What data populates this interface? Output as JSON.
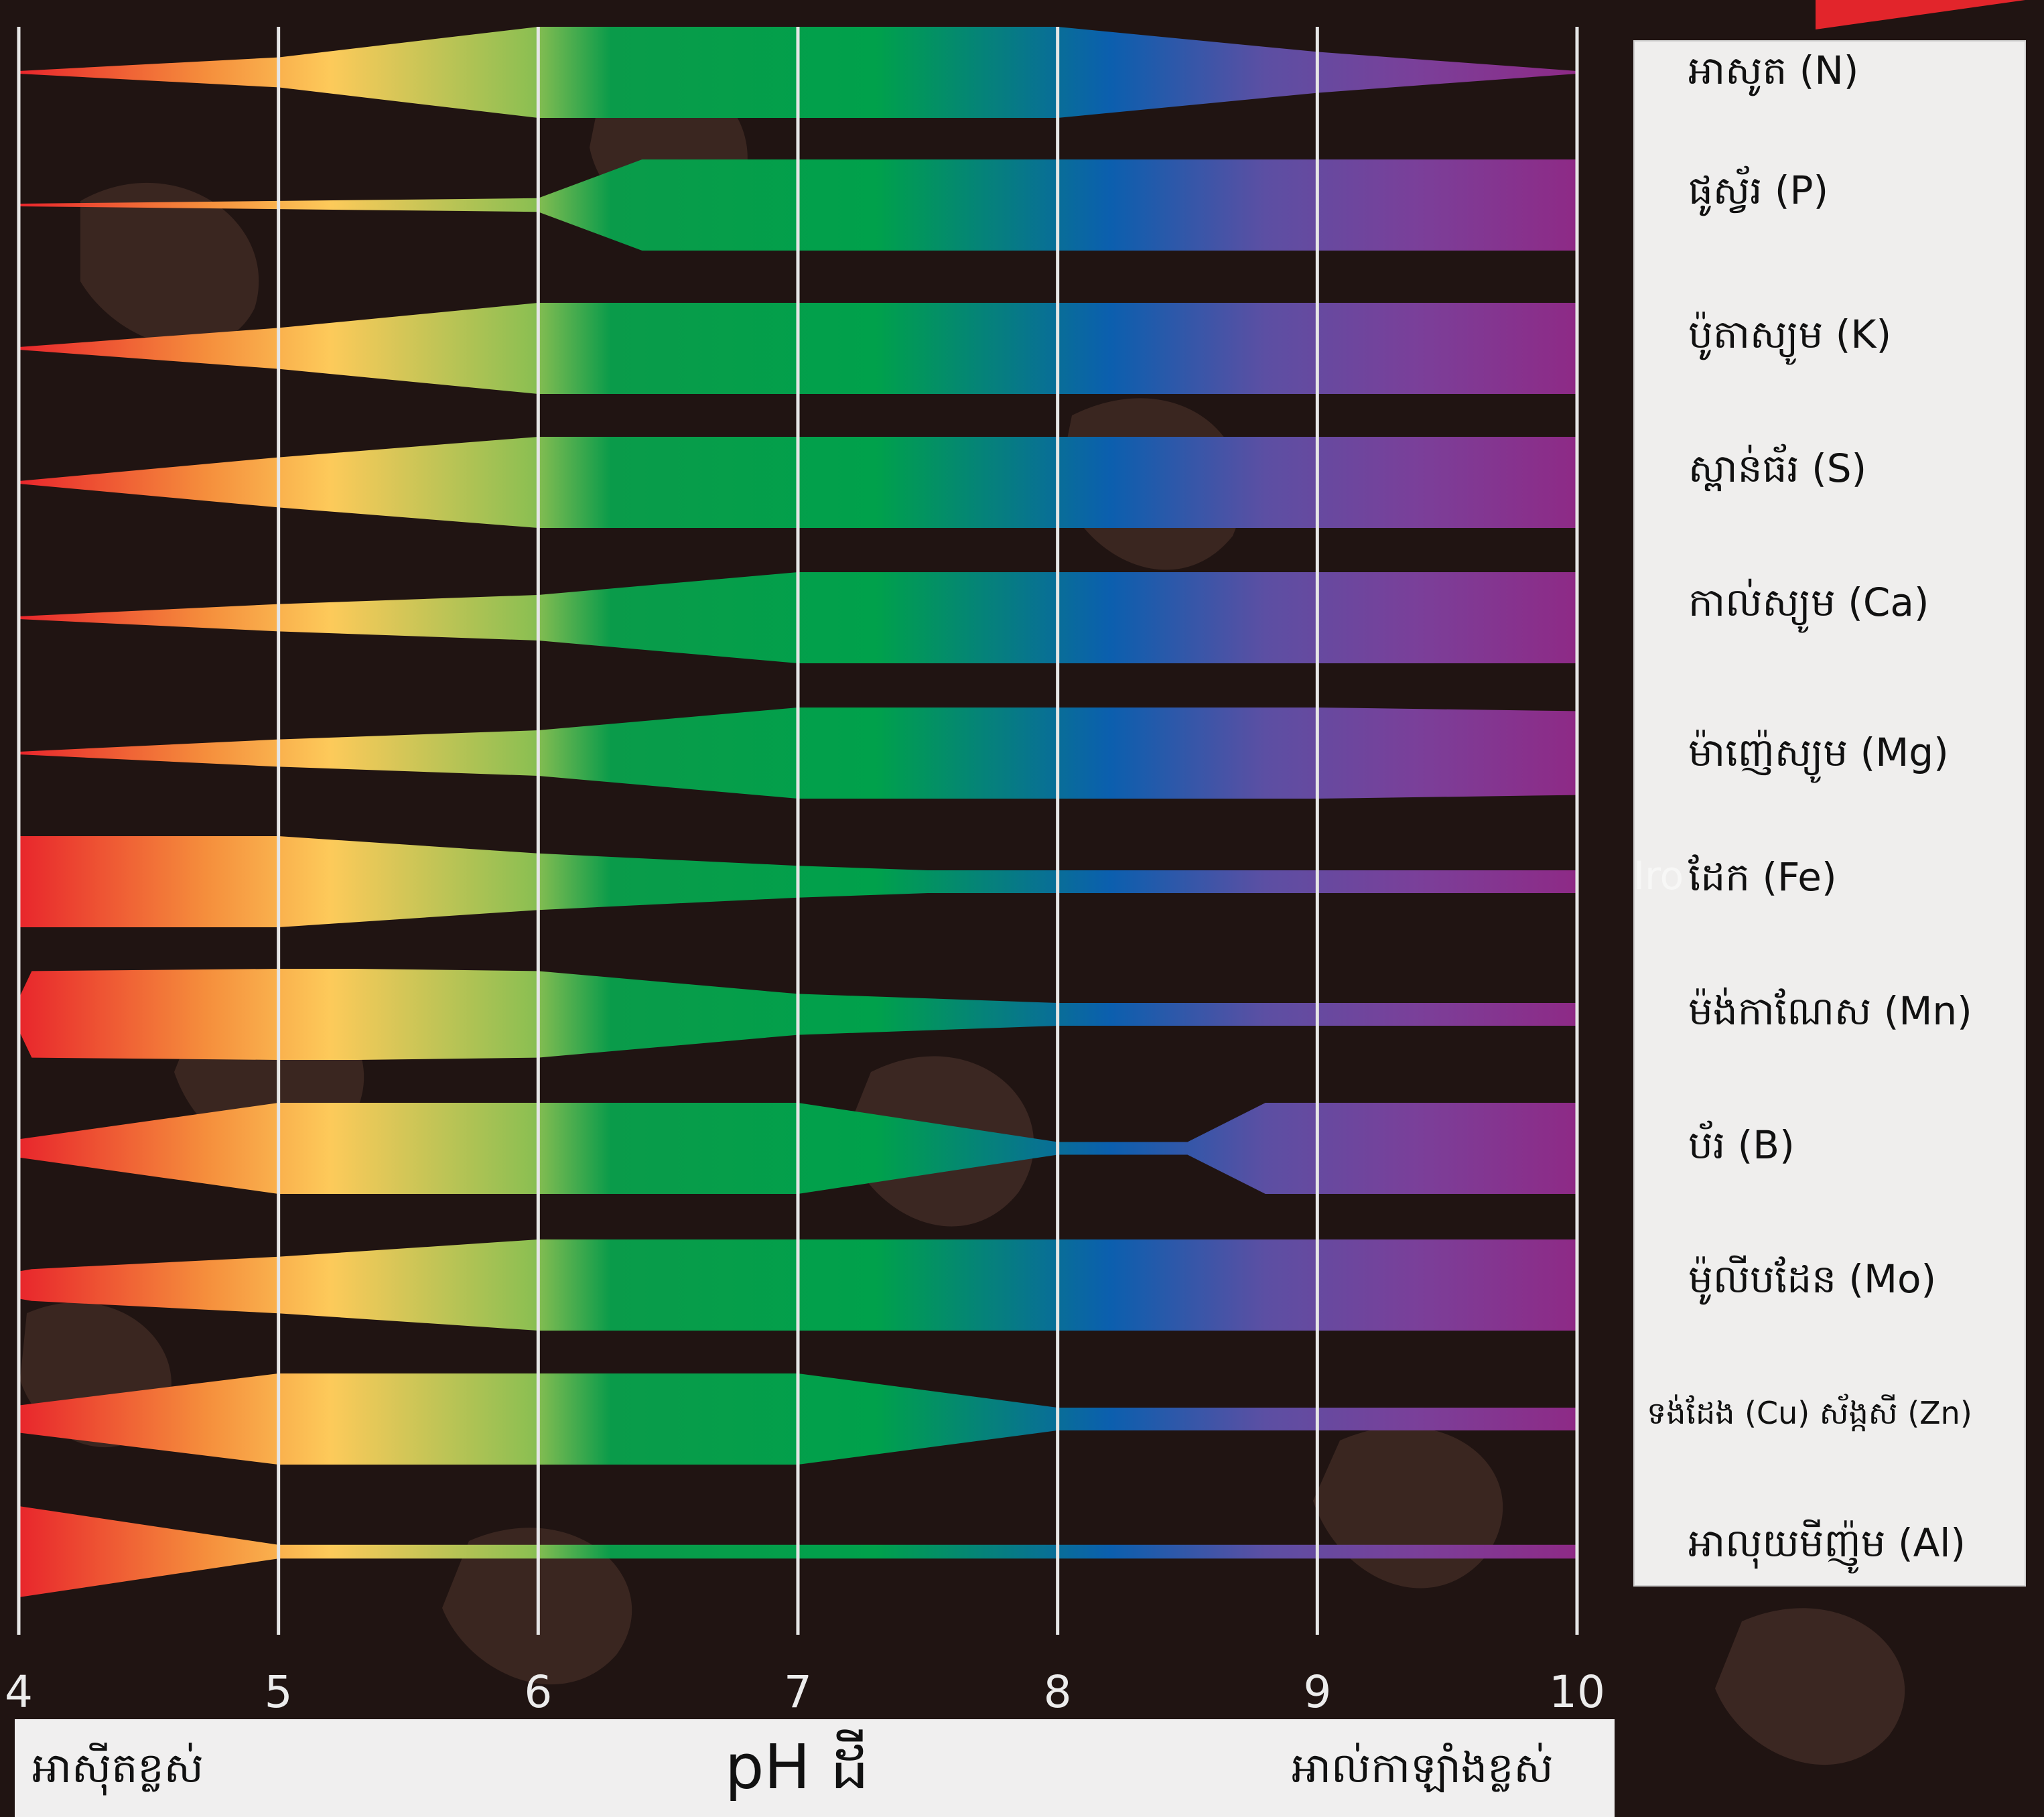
{
  "colors": {
    "background": "#201412",
    "gridline": "#e6e6e6",
    "gradient_stops": [
      "#e8262c",
      "#f58e3c",
      "#fdca5a",
      "#8cbf52",
      "#0a9b4a",
      "#00a14b",
      "#0b5fae",
      "#5c4fa3",
      "#7b3f99",
      "#8e2a86"
    ],
    "legend_bg": "#efeeed",
    "footer_bg": "#f0efef",
    "badge": "#e2252b"
  },
  "chart_data": {
    "type": "area",
    "title": "",
    "xlabel": "pH ដី",
    "ylabel": "",
    "xlim": [
      4,
      10
    ],
    "x_ticks": [
      "4",
      "5",
      "6",
      "7",
      "8",
      "9",
      "10"
    ],
    "x_left_annotation": "អាស៊ីតខ្លស់",
    "x_right_annotation": "អាល់កាឡាំងខ្លស់",
    "value_note": "relative nutrient availability (band thickness), 0-1",
    "series": [
      {
        "name": "អាសូត (N)",
        "x": [
          4,
          5,
          6,
          8,
          9,
          10
        ],
        "values": [
          0.0,
          0.33,
          1.0,
          1.0,
          0.45,
          0.0
        ]
      },
      {
        "name": "ផូស្វ័រ (P)",
        "x": [
          4,
          6,
          6.4,
          7,
          8,
          9,
          10
        ],
        "values": [
          0.0,
          0.15,
          1.0,
          1.0,
          1.0,
          1.0,
          1.0
        ]
      },
      {
        "name": "ប៉ូតាស្យូម (K)",
        "x": [
          4,
          5,
          6,
          8,
          10
        ],
        "values": [
          0.0,
          0.45,
          1.0,
          1.0,
          1.0
        ]
      },
      {
        "name": "ស្ពាន់ធ័រ (S)",
        "x": [
          4,
          5,
          6,
          8,
          10
        ],
        "values": [
          0.0,
          0.55,
          1.0,
          1.0,
          1.0
        ]
      },
      {
        "name": "កាល់ស្យូម (Ca)",
        "x": [
          4,
          5,
          6,
          7,
          8,
          10
        ],
        "values": [
          0.0,
          0.3,
          0.5,
          1.0,
          1.0,
          1.0
        ]
      },
      {
        "name": "ម៉ាញ៉េស្យូម (Mg)",
        "x": [
          4,
          5,
          6,
          7,
          8,
          9,
          10
        ],
        "values": [
          0.0,
          0.3,
          0.5,
          1.0,
          1.0,
          1.0,
          0.92
        ]
      },
      {
        "name": "ដែក (Fe)",
        "x": [
          4,
          5,
          6,
          7,
          7.5,
          8,
          10
        ],
        "values": [
          1.0,
          1.0,
          0.62,
          0.35,
          0.25,
          0.25,
          0.25
        ]
      },
      {
        "name": "ម៉ង់កាណែស (Mn)",
        "x": [
          4,
          4.05,
          5,
          5.3,
          6,
          7,
          8,
          10
        ],
        "values": [
          0.35,
          0.95,
          1.0,
          1.0,
          0.95,
          0.45,
          0.25,
          0.25
        ]
      },
      {
        "name": "ប័រ (B)",
        "x": [
          4,
          5,
          6,
          7,
          8,
          8.5,
          8.8,
          10
        ],
        "values": [
          0.2,
          1.0,
          1.0,
          1.0,
          0.14,
          0.14,
          1.0,
          1.0
        ]
      },
      {
        "name": "ម៉ូលីបដែន (Mo)",
        "x": [
          4,
          4.05,
          5,
          6,
          7,
          8,
          10
        ],
        "values": [
          0.3,
          0.35,
          0.62,
          1.0,
          1.0,
          1.0,
          1.0
        ]
      },
      {
        "name": "ទង់ដែង (Cu) ស័ង្កសី (Zn)",
        "x": [
          4,
          5,
          6,
          7,
          8,
          10
        ],
        "values": [
          0.3,
          1.0,
          1.0,
          1.0,
          0.25,
          0.25
        ]
      },
      {
        "name": "អាលុយមីញ៉ូម (Al)",
        "x": [
          4,
          5,
          6,
          7,
          10
        ],
        "values": [
          1.0,
          0.15,
          0.15,
          0.15,
          0.15
        ]
      }
    ]
  },
  "legend_labels": [
    "អាសូត (N)",
    "ផូស្វ័រ (P)",
    "ប៉ូតាស្យូម (K)",
    "ស្ពាន់ធ័រ (S)",
    "កាល់ស្យូម (Ca)",
    "ម៉ាញ៉េស្យូម (Mg)",
    "ដែក (Fe)",
    "ម៉ង់កាណែស (Mn)",
    "ប័រ (B)",
    "ម៉ូលីបដែន (Mo)",
    "ទង់ដែង (Cu) ស័ង្កសី (Zn)",
    "អាលុយមីញ៉ូម (Al)"
  ],
  "ghost_label": "Iro"
}
